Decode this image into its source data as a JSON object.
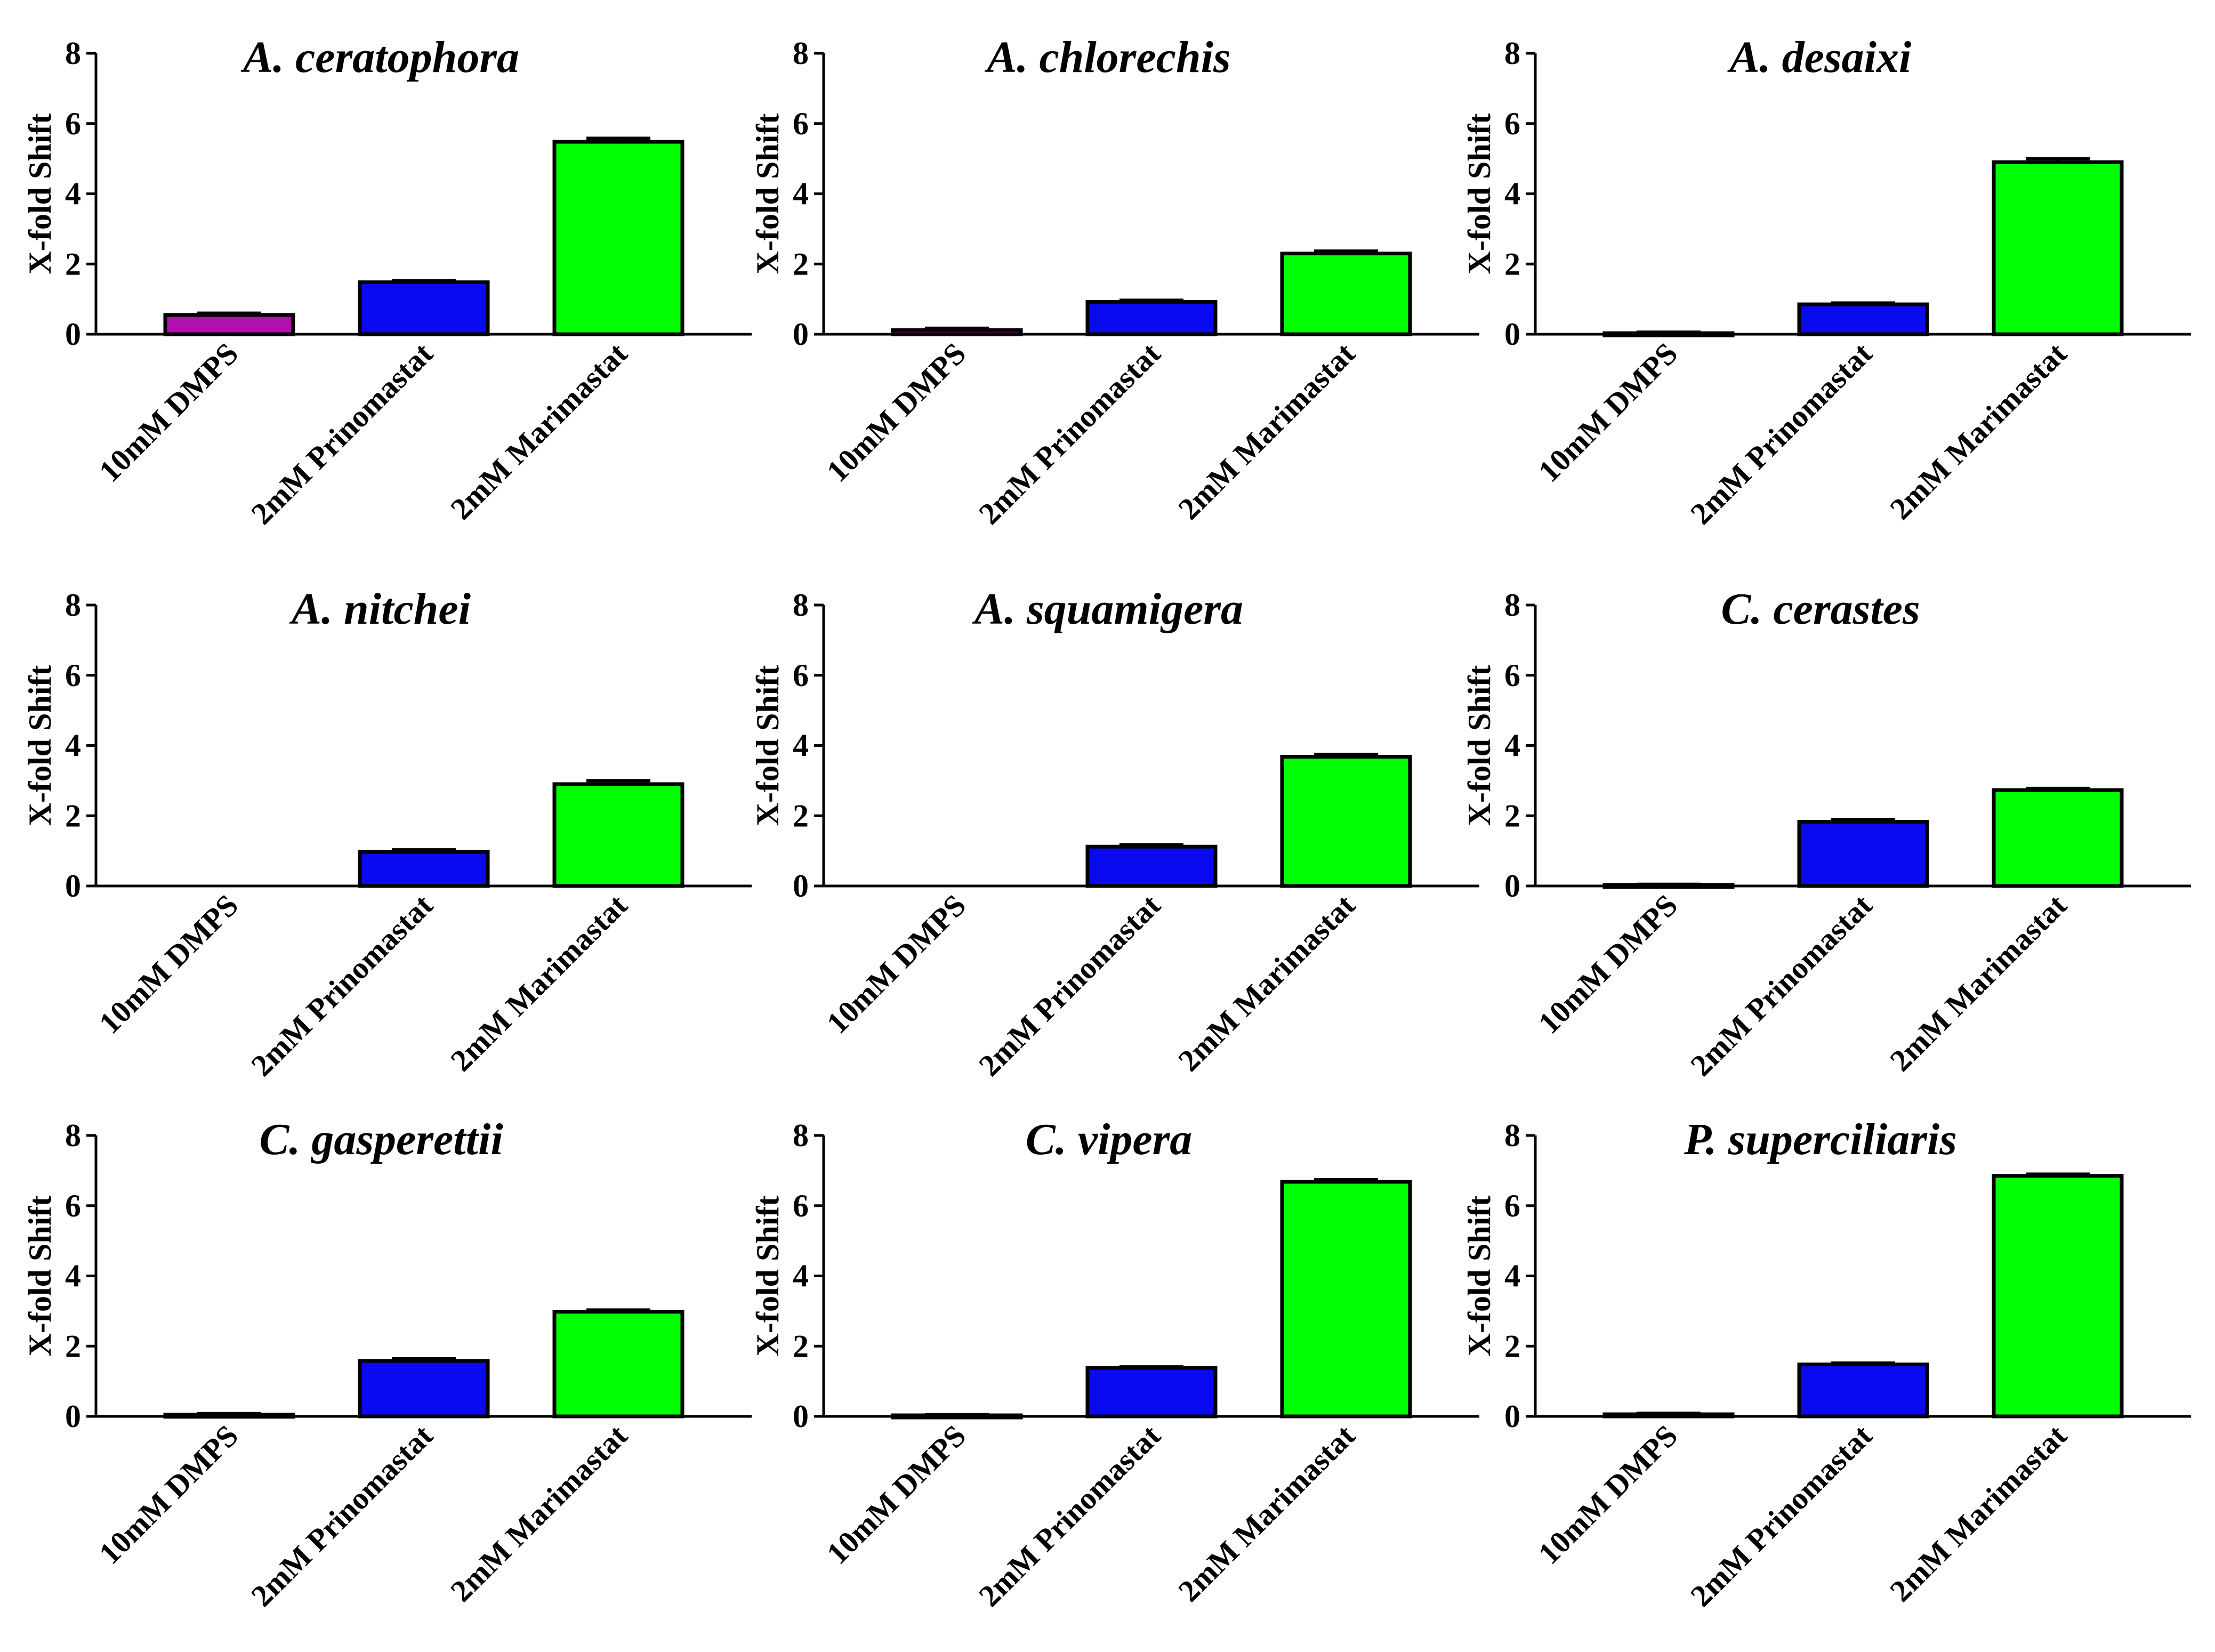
{
  "chart_data": [
    {
      "type": "bar",
      "title": "A. ceratophora",
      "ylabel": "X-fold Shift",
      "xlabel": "",
      "ylim": [
        0,
        8
      ],
      "yticks": [
        0,
        2,
        4,
        6,
        8
      ],
      "categories": [
        "10mM DMPS",
        "2mM Prinomastat",
        "2mM Marimastat"
      ],
      "values": [
        0.55,
        1.48,
        5.48
      ],
      "errors": [
        0.05,
        0.05,
        0.1
      ],
      "colors": [
        "#b010b0",
        "#0a0af0",
        "#00ff00"
      ]
    },
    {
      "type": "bar",
      "title": "A. chlorechis",
      "ylabel": "X-fold Shift",
      "xlabel": "",
      "ylim": [
        0,
        8
      ],
      "yticks": [
        0,
        2,
        4,
        6,
        8
      ],
      "categories": [
        "10mM DMPS",
        "2mM Prinomastat",
        "2mM Marimastat"
      ],
      "values": [
        0.12,
        0.92,
        2.3
      ],
      "errors": [
        0.05,
        0.05,
        0.07
      ],
      "colors": [
        "#b010b0",
        "#0a0af0",
        "#00ff00"
      ]
    },
    {
      "type": "bar",
      "title": "A. desaixi",
      "ylabel": "X-fold Shift",
      "xlabel": "",
      "ylim": [
        0,
        8
      ],
      "yticks": [
        0,
        2,
        4,
        6,
        8
      ],
      "categories": [
        "10mM DMPS",
        "2mM Prinomastat",
        "2mM Marimastat"
      ],
      "values": [
        0.03,
        0.85,
        4.9
      ],
      "errors": [
        0.03,
        0.04,
        0.1
      ],
      "colors": [
        "#b010b0",
        "#0a0af0",
        "#00ff00"
      ]
    },
    {
      "type": "bar",
      "title": "A. nitchei",
      "ylabel": "X-fold Shift",
      "xlabel": "",
      "ylim": [
        0,
        8
      ],
      "yticks": [
        0,
        2,
        4,
        6,
        8
      ],
      "categories": [
        "10mM DMPS",
        "2mM Prinomastat",
        "2mM Marimastat"
      ],
      "values": [
        0,
        0.97,
        2.9
      ],
      "errors": [
        0,
        0.06,
        0.1
      ],
      "colors": [
        "#b010b0",
        "#0a0af0",
        "#00ff00"
      ]
    },
    {
      "type": "bar",
      "title": "A. squamigera",
      "ylabel": "X-fold Shift",
      "xlabel": "",
      "ylim": [
        0,
        8
      ],
      "yticks": [
        0,
        2,
        4,
        6,
        8
      ],
      "categories": [
        "10mM DMPS",
        "2mM Prinomastat",
        "2mM Marimastat"
      ],
      "values": [
        0,
        1.12,
        3.68
      ],
      "errors": [
        0,
        0.05,
        0.07
      ],
      "colors": [
        "#b010b0",
        "#0a0af0",
        "#00ff00"
      ]
    },
    {
      "type": "bar",
      "title": "C. cerastes",
      "ylabel": "X-fold Shift",
      "xlabel": "",
      "ylim": [
        0,
        8
      ],
      "yticks": [
        0,
        2,
        4,
        6,
        8
      ],
      "categories": [
        "10mM DMPS",
        "2mM Prinomastat",
        "2mM Marimastat"
      ],
      "values": [
        0.03,
        1.83,
        2.73
      ],
      "errors": [
        0.02,
        0.06,
        0.05
      ],
      "colors": [
        "#b010b0",
        "#0a0af0",
        "#00ff00"
      ]
    },
    {
      "type": "bar",
      "title": "C. gasperettii",
      "ylabel": "X-fold Shift",
      "xlabel": "",
      "ylim": [
        0,
        8
      ],
      "yticks": [
        0,
        2,
        4,
        6,
        8
      ],
      "categories": [
        "10mM DMPS",
        "2mM Prinomastat",
        "2mM Marimastat"
      ],
      "values": [
        0.05,
        1.58,
        2.98
      ],
      "errors": [
        0.03,
        0.06,
        0.05
      ],
      "colors": [
        "#b010b0",
        "#0a0af0",
        "#00ff00"
      ]
    },
    {
      "type": "bar",
      "title": "C. vipera",
      "ylabel": "X-fold Shift",
      "xlabel": "",
      "ylim": [
        0,
        8
      ],
      "yticks": [
        0,
        2,
        4,
        6,
        8
      ],
      "categories": [
        "10mM DMPS",
        "2mM Prinomastat",
        "2mM Marimastat"
      ],
      "values": [
        0.03,
        1.38,
        6.68
      ],
      "errors": [
        0.02,
        0.03,
        0.06
      ],
      "colors": [
        "#b010b0",
        "#0a0af0",
        "#00ff00"
      ]
    },
    {
      "type": "bar",
      "title": "P. superciliaris",
      "ylabel": "X-fold Shift",
      "xlabel": "",
      "ylim": [
        0,
        8
      ],
      "yticks": [
        0,
        2,
        4,
        6,
        8
      ],
      "categories": [
        "10mM DMPS",
        "2mM Prinomastat",
        "2mM Marimastat"
      ],
      "values": [
        0.06,
        1.48,
        6.85
      ],
      "errors": [
        0.03,
        0.04,
        0.05
      ],
      "colors": [
        "#b010b0",
        "#0a0af0",
        "#00ff00"
      ]
    }
  ]
}
